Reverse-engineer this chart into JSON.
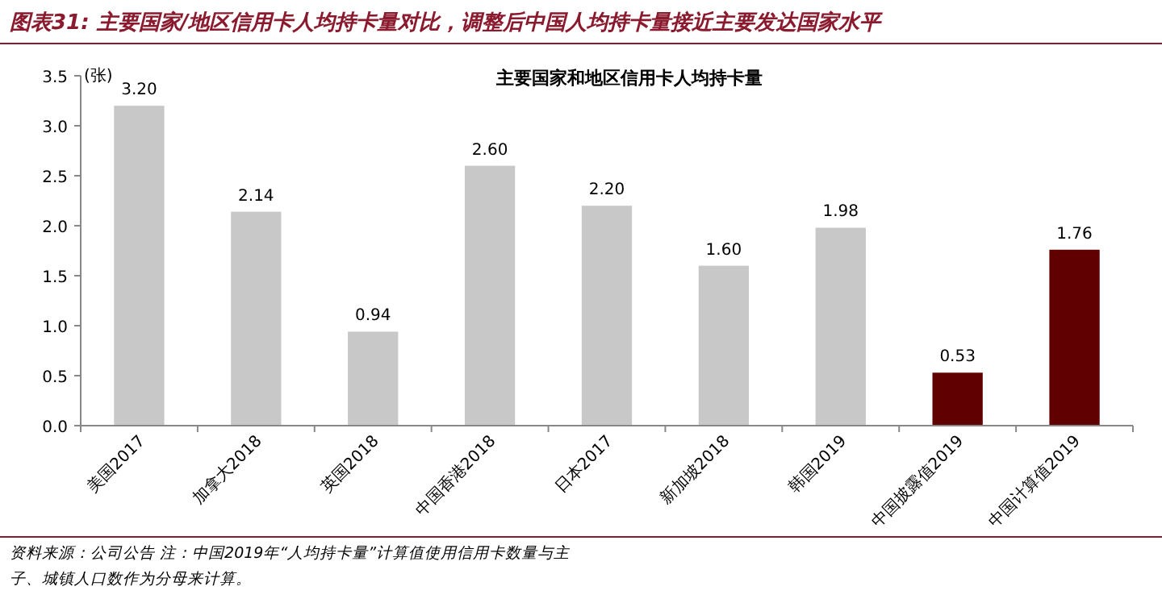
{
  "chart_data": {
    "type": "bar",
    "title": "图表31: 主要国家/地区信用卡人均持卡量对比，调整后中国人均持卡量接近主要发达国家水平",
    "subtitle": "主要国家和地区信用卡人均持卡量",
    "ylabel": "(张)",
    "categories": [
      "美国2017",
      "加拿大2018",
      "英国2018",
      "中国香港2018",
      "日本2017",
      "新加坡2018",
      "韩国2019",
      "中国披露值2019",
      "中国计算值2019"
    ],
    "values": [
      3.2,
      2.14,
      0.94,
      2.6,
      2.2,
      1.6,
      1.98,
      0.53,
      1.76
    ],
    "colors": [
      "#c8c8c8",
      "#c8c8c8",
      "#c8c8c8",
      "#c8c8c8",
      "#c8c8c8",
      "#c8c8c8",
      "#c8c8c8",
      "#600000",
      "#600000"
    ],
    "ylim": [
      0,
      3.5
    ],
    "yticks": [
      {
        "value": 0,
        "label": "0.0"
      },
      {
        "value": 0.5,
        "label": "0.5"
      },
      {
        "value": 1,
        "label": "1.0"
      },
      {
        "value": 1.5,
        "label": "1.5"
      },
      {
        "value": 2,
        "label": "2.0"
      },
      {
        "value": 2.5,
        "label": "2.5"
      },
      {
        "value": 3,
        "label": "3.0"
      },
      {
        "value": 3.5,
        "label": "3.5"
      }
    ],
    "value_labels": [
      "3.20",
      "2.14",
      "0.94",
      "2.60",
      "2.20",
      "1.60",
      "1.98",
      "0.53",
      "1.76"
    ],
    "annotations": [
      "资料来源：公司公告",
      "注：中国2019年“人均持卡量”计算值使用信用卡数量与主",
      "子、城镇人口数作为分母来计算。"
    ]
  }
}
